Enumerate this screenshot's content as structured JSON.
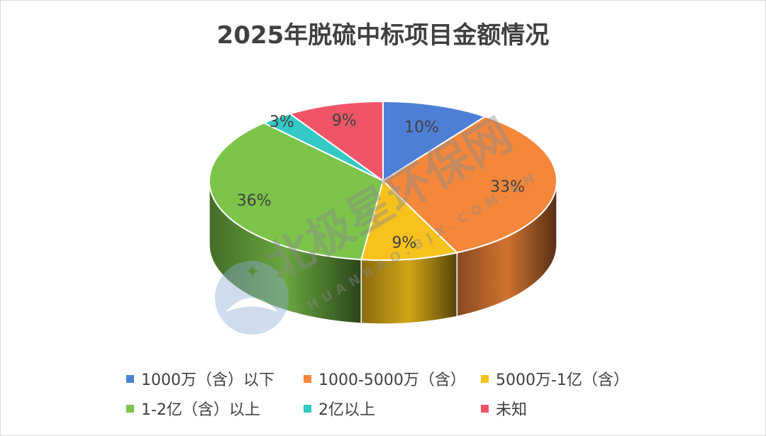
{
  "chart_data": {
    "type": "pie",
    "title": "2025年脱硫中标项目金额情况",
    "categories": [
      "1000万（含）以下",
      "1000-5000万（含）",
      "5000万-1亿（含）",
      "1-2亿（含）以上",
      "2亿以上",
      "未知"
    ],
    "values": [
      10,
      33,
      9,
      36,
      3,
      9
    ],
    "value_labels": [
      "10%",
      "33%",
      "9%",
      "36%",
      "3%",
      "9%"
    ],
    "colors": [
      "#4e7fd6",
      "#f5873a",
      "#f7c21b",
      "#7cc44a",
      "#33c9c5",
      "#ef5567"
    ],
    "legend_position": "bottom",
    "style": "3d"
  },
  "watermark": {
    "text": "北极星环保网",
    "subtext": "HUANBAO.BJX.COM.CN"
  }
}
